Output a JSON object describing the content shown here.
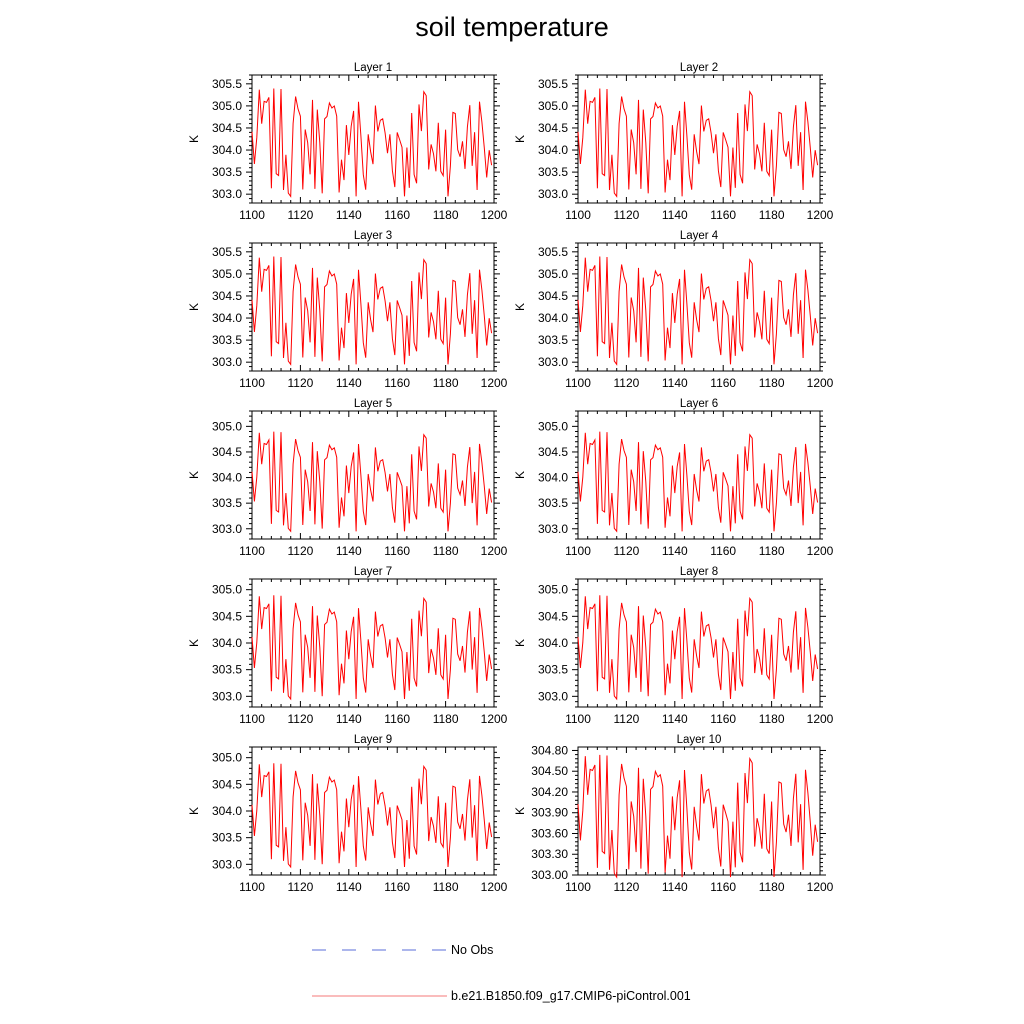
{
  "title": "soil temperature",
  "legend": [
    {
      "label": "No Obs",
      "color": "#5a6ed8",
      "style": "dashed"
    },
    {
      "label": "b.e21.B1850.f09_g17.CMIP6-piControl.001",
      "color": "#f47a7a",
      "style": "solid"
    }
  ],
  "series_color": "#ff0000",
  "chart_data": [
    {
      "type": "line",
      "title": "Layer 1",
      "ylabel": "K",
      "xlim": [
        1100,
        1200
      ],
      "ylim": [
        302.8,
        305.7
      ],
      "xticks": [
        1100,
        1120,
        1140,
        1160,
        1180,
        1200
      ],
      "xtick_labels": [
        "1100",
        "1120",
        "1140",
        "1160",
        "1180",
        "1200"
      ],
      "yticks": [
        303.0,
        303.5,
        304.0,
        304.5,
        305.0,
        305.5
      ],
      "ytick_labels": [
        "303.0",
        "303.5",
        "304.0",
        "304.5",
        "305.0",
        "305.5"
      ]
    },
    {
      "type": "line",
      "title": "Layer 2",
      "ylabel": "K",
      "xlim": [
        1100,
        1200
      ],
      "ylim": [
        302.8,
        305.7
      ],
      "xticks": [
        1100,
        1120,
        1140,
        1160,
        1180,
        1200
      ],
      "xtick_labels": [
        "1100",
        "1120",
        "1140",
        "1160",
        "1180",
        "1200"
      ],
      "yticks": [
        303.0,
        303.5,
        304.0,
        304.5,
        305.0,
        305.5
      ],
      "ytick_labels": [
        "303.0",
        "303.5",
        "304.0",
        "304.5",
        "305.0",
        "305.5"
      ]
    },
    {
      "type": "line",
      "title": "Layer 3",
      "ylabel": "K",
      "xlim": [
        1100,
        1200
      ],
      "ylim": [
        302.8,
        305.7
      ],
      "xticks": [
        1100,
        1120,
        1140,
        1160,
        1180,
        1200
      ],
      "xtick_labels": [
        "1100",
        "1120",
        "1140",
        "1160",
        "1180",
        "1200"
      ],
      "yticks": [
        303.0,
        303.5,
        304.0,
        304.5,
        305.0,
        305.5
      ],
      "ytick_labels": [
        "303.0",
        "303.5",
        "304.0",
        "304.5",
        "305.0",
        "305.5"
      ]
    },
    {
      "type": "line",
      "title": "Layer 4",
      "ylabel": "K",
      "xlim": [
        1100,
        1200
      ],
      "ylim": [
        302.8,
        305.7
      ],
      "xticks": [
        1100,
        1120,
        1140,
        1160,
        1180,
        1200
      ],
      "xtick_labels": [
        "1100",
        "1120",
        "1140",
        "1160",
        "1180",
        "1200"
      ],
      "yticks": [
        303.0,
        303.5,
        304.0,
        304.5,
        305.0,
        305.5
      ],
      "ytick_labels": [
        "303.0",
        "303.5",
        "304.0",
        "304.5",
        "305.0",
        "305.5"
      ]
    },
    {
      "type": "line",
      "title": "Layer 5",
      "ylabel": "K",
      "xlim": [
        1100,
        1200
      ],
      "ylim": [
        302.8,
        305.3
      ],
      "xticks": [
        1100,
        1120,
        1140,
        1160,
        1180,
        1200
      ],
      "xtick_labels": [
        "1100",
        "1120",
        "1140",
        "1160",
        "1180",
        "1200"
      ],
      "yticks": [
        303.0,
        303.5,
        304.0,
        304.5,
        305.0
      ],
      "ytick_labels": [
        "303.0",
        "303.5",
        "304.0",
        "304.5",
        "305.0"
      ]
    },
    {
      "type": "line",
      "title": "Layer 6",
      "ylabel": "K",
      "xlim": [
        1100,
        1200
      ],
      "ylim": [
        302.8,
        305.3
      ],
      "xticks": [
        1100,
        1120,
        1140,
        1160,
        1180,
        1200
      ],
      "xtick_labels": [
        "1100",
        "1120",
        "1140",
        "1160",
        "1180",
        "1200"
      ],
      "yticks": [
        303.0,
        303.5,
        304.0,
        304.5,
        305.0
      ],
      "ytick_labels": [
        "303.0",
        "303.5",
        "304.0",
        "304.5",
        "305.0"
      ]
    },
    {
      "type": "line",
      "title": "Layer 7",
      "ylabel": "K",
      "xlim": [
        1100,
        1200
      ],
      "ylim": [
        302.8,
        305.2
      ],
      "xticks": [
        1100,
        1120,
        1140,
        1160,
        1180,
        1200
      ],
      "xtick_labels": [
        "1100",
        "1120",
        "1140",
        "1160",
        "1180",
        "1200"
      ],
      "yticks": [
        303.0,
        303.5,
        304.0,
        304.5,
        305.0
      ],
      "ytick_labels": [
        "303.0",
        "303.5",
        "304.0",
        "304.5",
        "305.0"
      ]
    },
    {
      "type": "line",
      "title": "Layer 8",
      "ylabel": "K",
      "xlim": [
        1100,
        1200
      ],
      "ylim": [
        302.8,
        305.2
      ],
      "xticks": [
        1100,
        1120,
        1140,
        1160,
        1180,
        1200
      ],
      "xtick_labels": [
        "1100",
        "1120",
        "1140",
        "1160",
        "1180",
        "1200"
      ],
      "yticks": [
        303.0,
        303.5,
        304.0,
        304.5,
        305.0
      ],
      "ytick_labels": [
        "303.0",
        "303.5",
        "304.0",
        "304.5",
        "305.0"
      ]
    },
    {
      "type": "line",
      "title": "Layer 9",
      "ylabel": "K",
      "xlim": [
        1100,
        1200
      ],
      "ylim": [
        302.8,
        305.2
      ],
      "xticks": [
        1100,
        1120,
        1140,
        1160,
        1180,
        1200
      ],
      "xtick_labels": [
        "1100",
        "1120",
        "1140",
        "1160",
        "1180",
        "1200"
      ],
      "yticks": [
        303.0,
        303.5,
        304.0,
        304.5,
        305.0
      ],
      "ytick_labels": [
        "303.0",
        "303.5",
        "304.0",
        "304.5",
        "305.0"
      ]
    },
    {
      "type": "line",
      "title": "Layer 10",
      "ylabel": "K",
      "xlim": [
        1100,
        1200
      ],
      "ylim": [
        303.0,
        304.85
      ],
      "xticks": [
        1100,
        1120,
        1140,
        1160,
        1180,
        1200
      ],
      "xtick_labels": [
        "1100",
        "1120",
        "1140",
        "1160",
        "1180",
        "1200"
      ],
      "yticks": [
        303.0,
        303.3,
        303.6,
        303.9,
        304.2,
        304.5,
        304.8
      ],
      "ytick_labels": [
        "303.00",
        "303.30",
        "303.60",
        "303.90",
        "304.20",
        "304.50",
        "304.80"
      ]
    }
  ]
}
